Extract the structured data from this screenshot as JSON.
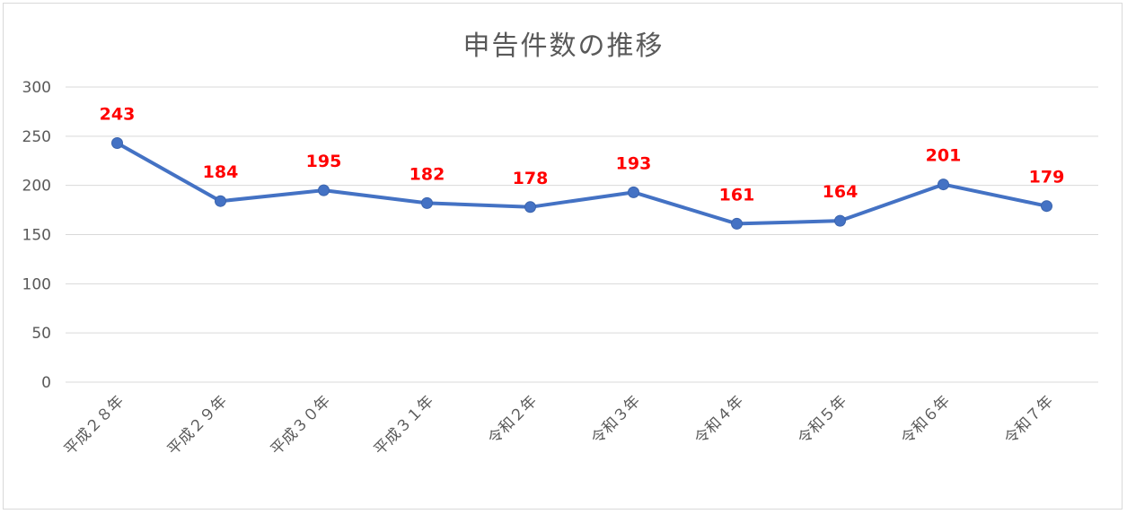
{
  "chart_data": {
    "type": "line",
    "title": "申告件数の推移",
    "xlabel": "",
    "ylabel": "",
    "categories": [
      "平成２８年",
      "平成２９年",
      "平成３０年",
      "平成３１年",
      "令和２年",
      "令和３年",
      "令和４年",
      "令和５年",
      "令和６年",
      "令和７年"
    ],
    "series": [
      {
        "values": [
          243,
          184,
          195,
          182,
          178,
          193,
          161,
          164,
          201,
          179
        ]
      }
    ],
    "yticks": [
      "0",
      "50",
      "100",
      "150",
      "200",
      "250",
      "300"
    ],
    "ylim": [
      0,
      300
    ],
    "grid": true,
    "legend": "none",
    "colors": {
      "line": "#4472c4",
      "label": "#ff0000",
      "grid": "#d9d9d9",
      "axis_text": "#595959"
    }
  }
}
